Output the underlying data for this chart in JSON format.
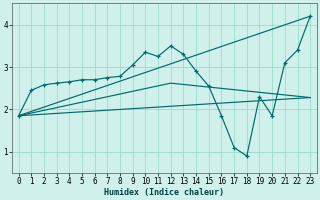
{
  "xlabel": "Humidex (Indice chaleur)",
  "background_color": "#cff0eb",
  "grid_color": "#99ddcc",
  "line_color": "#006b6b",
  "xlim": [
    -0.5,
    23.5
  ],
  "ylim": [
    0.5,
    4.5
  ],
  "yticks": [
    1,
    2,
    3,
    4
  ],
  "xticks": [
    0,
    1,
    2,
    3,
    4,
    5,
    6,
    7,
    8,
    9,
    10,
    11,
    12,
    13,
    14,
    15,
    16,
    17,
    18,
    19,
    20,
    21,
    22,
    23
  ],
  "series_main": [
    [
      0,
      1.85
    ],
    [
      1,
      2.45
    ],
    [
      2,
      2.58
    ],
    [
      3,
      2.62
    ],
    [
      4,
      2.65
    ],
    [
      5,
      2.7
    ],
    [
      6,
      2.7
    ],
    [
      7,
      2.75
    ],
    [
      8,
      2.78
    ],
    [
      9,
      3.05
    ],
    [
      10,
      3.35
    ],
    [
      11,
      3.25
    ],
    [
      12,
      3.5
    ],
    [
      13,
      3.3
    ],
    [
      14,
      2.9
    ],
    [
      15,
      2.55
    ],
    [
      16,
      1.85
    ],
    [
      17,
      1.1
    ],
    [
      18,
      0.9
    ],
    [
      19,
      2.3
    ],
    [
      20,
      1.85
    ],
    [
      21,
      3.1
    ],
    [
      22,
      3.4
    ],
    [
      23,
      4.2
    ]
  ],
  "line_straight1": [
    [
      0,
      1.85
    ],
    [
      23,
      4.2
    ]
  ],
  "line_straight2": [
    [
      0,
      1.85
    ],
    [
      12,
      2.62
    ],
    [
      23,
      2.28
    ]
  ],
  "line_straight3": [
    [
      0,
      1.85
    ],
    [
      23,
      2.28
    ]
  ]
}
